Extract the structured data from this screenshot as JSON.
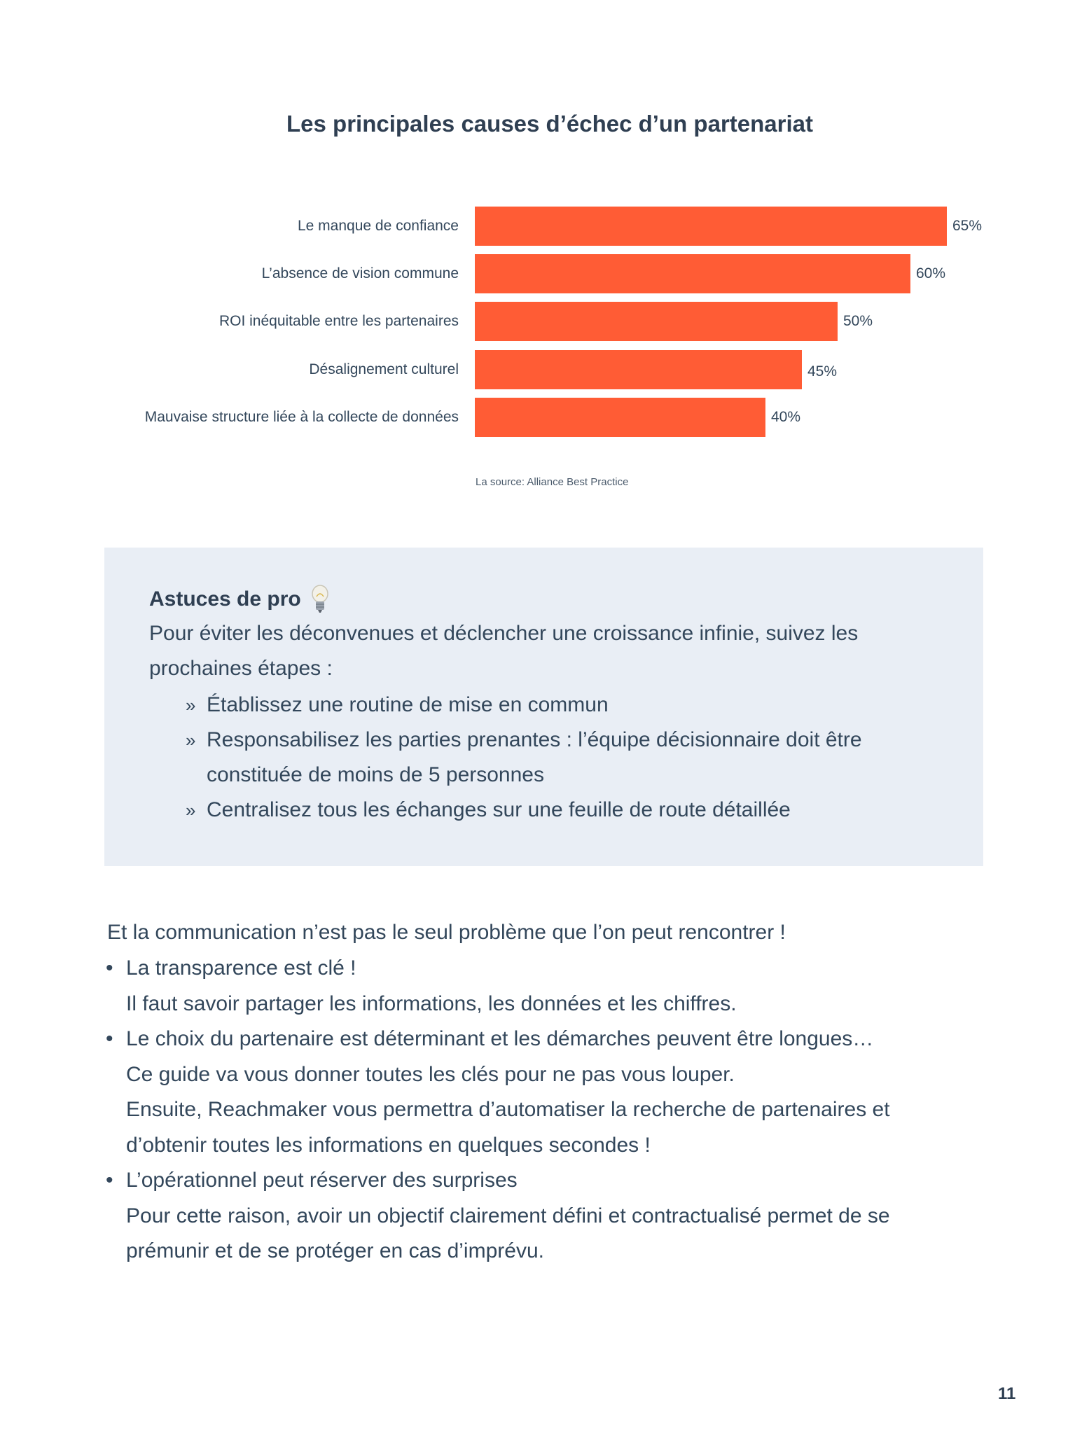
{
  "chart_data": {
    "type": "bar",
    "orientation": "horizontal",
    "title": "Les principales causes d’échec d’un partenariat",
    "categories": [
      "Le manque de confiance",
      "L’absence de vision commune",
      "ROI inéquitable entre les partenaires",
      "Désalignement culturel",
      "Mauvaise structure liée à la collecte de données"
    ],
    "values": [
      65,
      60,
      50,
      45,
      40
    ],
    "value_labels": [
      "65%",
      "60%",
      "50%",
      "45%",
      "40%"
    ],
    "bar_color": "#ff5c35",
    "grid": false,
    "source": "La source: Alliance Best Practice"
  },
  "tips": {
    "title": "Astuces de pro",
    "icon": "lightbulb-icon",
    "intro": "Pour éviter les déconvenues et déclencher une croissance infinie, suivez les prochaines étapes :",
    "bullet_symbol": "»",
    "items": [
      "Établissez une routine de mise en commun",
      "Responsabilisez les parties prenantes : l’équipe décisionnaire doit être constituée de moins de 5 personnes",
      "Centralisez tous les échanges sur une feuille de route détaillée"
    ]
  },
  "body": {
    "intro": "Et la communication n’est pas le seul problème que l’on peut rencontrer !",
    "bullet_symbol": "•",
    "items": [
      {
        "lines": [
          "La transparence est clé !",
          "Il faut savoir partager les informations, les données et les chiffres."
        ]
      },
      {
        "lines": [
          "Le choix du partenaire est déterminant et les démarches peuvent être longues…",
          "Ce guide va vous donner toutes les clés pour ne pas vous louper.",
          "Ensuite, Reachmaker vous permettra d’automatiser la recherche de partenaires et d’obtenir toutes les informations en quelques secondes !"
        ]
      },
      {
        "lines": [
          "L’opérationnel peut réserver des surprises",
          "Pour cette raison, avoir un objectif clairement défini et contractualisé permet de se prémunir et de se protéger en cas d’imprévu."
        ]
      }
    ]
  },
  "page_number": "11"
}
